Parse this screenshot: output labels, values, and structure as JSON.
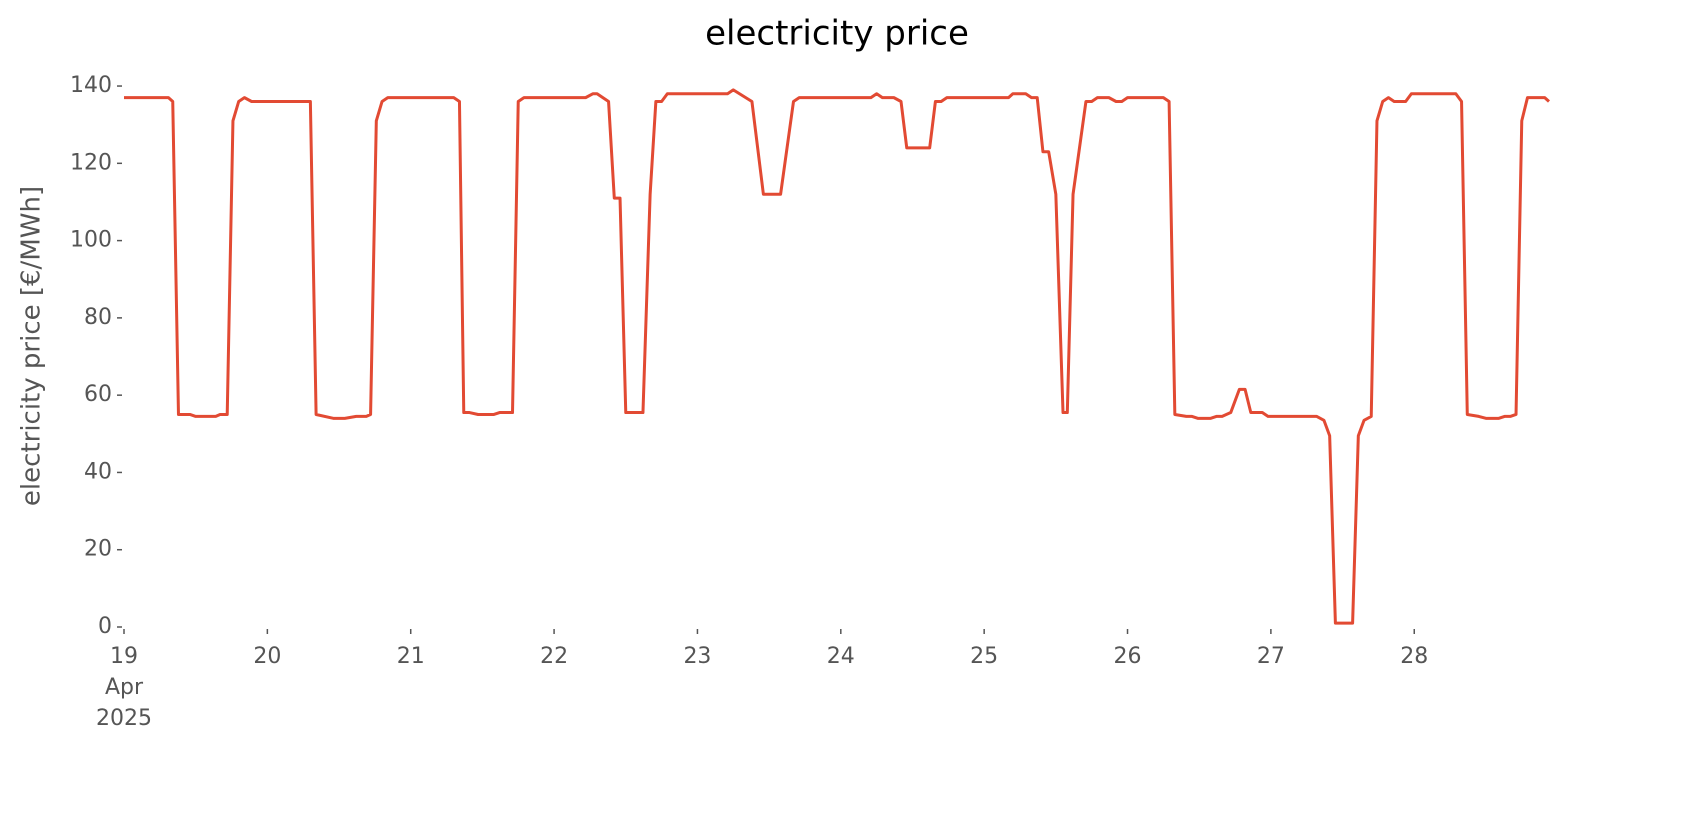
{
  "chart_data": {
    "type": "line",
    "title": "electricity price",
    "ylabel": "electricity price [€/MWh]",
    "x_date_month": "Apr",
    "x_date_year": "2025",
    "x": [
      19.0,
      19.31,
      19.34,
      19.38,
      19.46,
      19.5,
      19.64,
      19.67,
      19.72,
      19.76,
      19.8,
      19.84,
      19.89,
      20.3,
      20.34,
      20.46,
      20.54,
      20.62,
      20.69,
      20.72,
      20.76,
      20.8,
      20.84,
      21.3,
      21.34,
      21.37,
      21.41,
      21.47,
      21.58,
      21.62,
      21.71,
      21.75,
      21.79,
      22.22,
      22.27,
      22.3,
      22.38,
      22.42,
      22.46,
      22.5,
      22.62,
      22.67,
      22.71,
      22.75,
      22.79,
      23.21,
      23.25,
      23.38,
      23.46,
      23.58,
      23.67,
      23.71,
      24.21,
      24.25,
      24.29,
      24.37,
      24.42,
      24.46,
      24.62,
      24.66,
      24.7,
      24.74,
      25.17,
      25.2,
      25.29,
      25.33,
      25.37,
      25.41,
      25.45,
      25.5,
      25.55,
      25.58,
      25.62,
      25.71,
      25.75,
      25.79,
      25.87,
      25.92,
      25.96,
      26.0,
      26.25,
      26.29,
      26.33,
      26.41,
      26.45,
      26.49,
      26.58,
      26.62,
      26.66,
      26.72,
      26.78,
      26.82,
      26.86,
      26.94,
      26.98,
      27.32,
      27.37,
      27.41,
      27.45,
      27.57,
      27.61,
      27.65,
      27.7,
      27.74,
      27.78,
      27.82,
      27.86,
      27.94,
      27.98,
      28.29,
      28.33,
      28.37,
      28.45,
      28.5,
      28.59,
      28.63,
      28.67,
      28.71,
      28.75,
      28.79,
      28.91,
      28.94
    ],
    "series": [
      {
        "name": "electricity price",
        "color": "#e24a33",
        "values": [
          137,
          137,
          136,
          55,
          55,
          54.5,
          54.5,
          55,
          55,
          131,
          136,
          137,
          136,
          136,
          55,
          54,
          54,
          54.5,
          54.5,
          55,
          131,
          136,
          137,
          137,
          136,
          55.5,
          55.5,
          55,
          55,
          55.5,
          55.5,
          136,
          137,
          137,
          138,
          138,
          136,
          111,
          111,
          55.5,
          55.5,
          112,
          136,
          136,
          138,
          138,
          139,
          136,
          112,
          112,
          136,
          137,
          137,
          138,
          137,
          137,
          136,
          124,
          124,
          136,
          136,
          137,
          137,
          138,
          138,
          137,
          137,
          123,
          123,
          112,
          55.5,
          55.5,
          112,
          136,
          136,
          137,
          137,
          136,
          136,
          137,
          137,
          136,
          55,
          54.5,
          54.5,
          54,
          54,
          54.5,
          54.5,
          55.5,
          61.5,
          61.5,
          55.5,
          55.5,
          54.5,
          54.5,
          53.5,
          49.5,
          1,
          1,
          49.5,
          53.5,
          54.5,
          131,
          136,
          137,
          136,
          136,
          138,
          138,
          136,
          55,
          54.5,
          54,
          54,
          54.5,
          54.5,
          55,
          131,
          137,
          137,
          136
        ]
      }
    ],
    "xlim": [
      19,
      28.94
    ],
    "xticks": [
      19,
      20,
      21,
      22,
      23,
      24,
      25,
      26,
      27,
      28
    ],
    "ylim": [
      0,
      144
    ],
    "yticks": [
      0,
      20,
      40,
      60,
      80,
      100,
      120,
      140
    ],
    "grid": false
  }
}
